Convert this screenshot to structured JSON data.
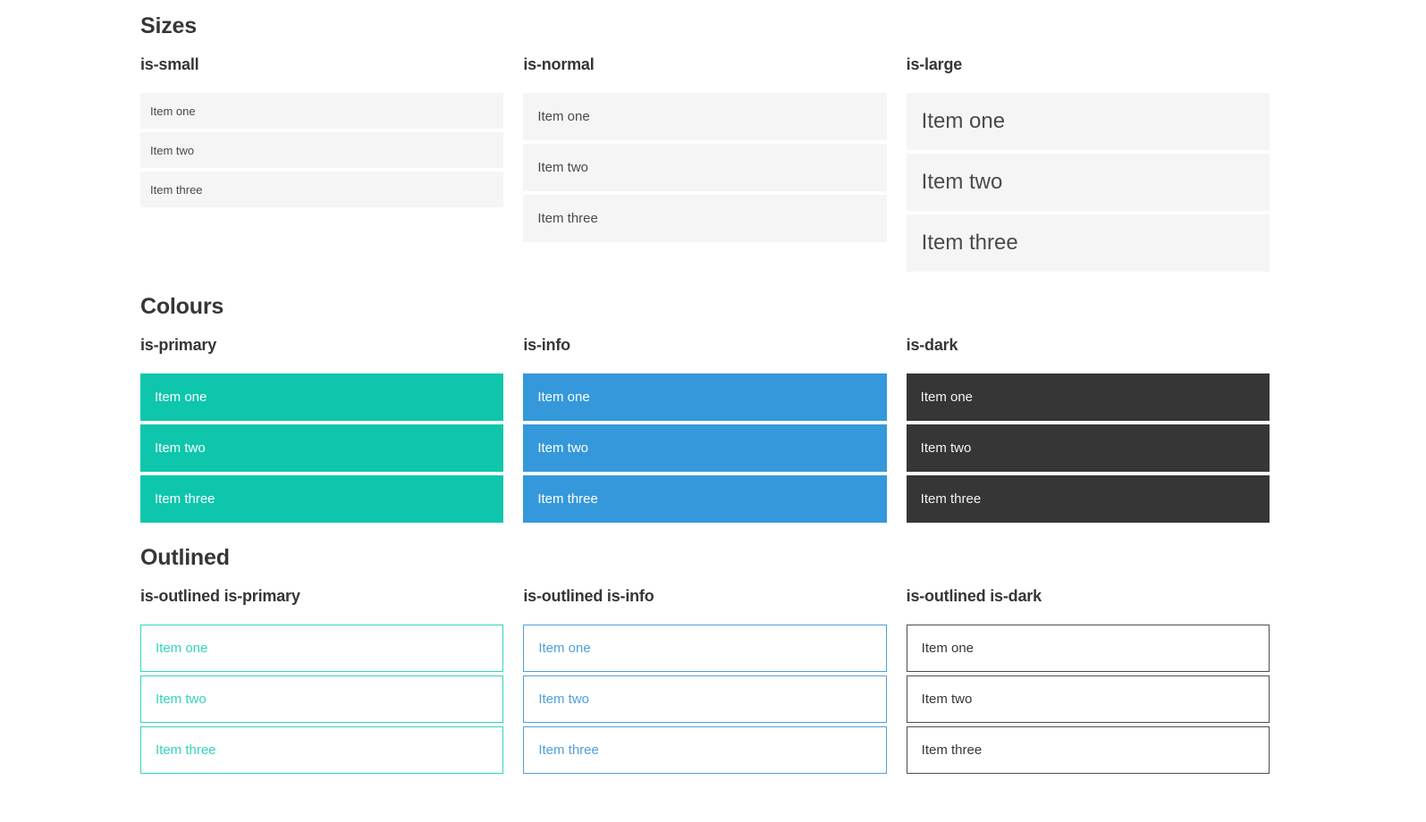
{
  "sections": [
    {
      "title": "Sizes",
      "groups": [
        {
          "label": "is-small",
          "items": [
            "Item one",
            "Item two",
            "Item three"
          ]
        },
        {
          "label": "is-normal",
          "items": [
            "Item one",
            "Item two",
            "Item three"
          ]
        },
        {
          "label": "is-large",
          "items": [
            "Item one",
            "Item two",
            "Item three"
          ]
        }
      ]
    },
    {
      "title": "Colours",
      "groups": [
        {
          "label": "is-primary",
          "items": [
            "Item one",
            "Item two",
            "Item three"
          ]
        },
        {
          "label": "is-info",
          "items": [
            "Item one",
            "Item two",
            "Item three"
          ]
        },
        {
          "label": "is-dark",
          "items": [
            "Item one",
            "Item two",
            "Item three"
          ]
        }
      ]
    },
    {
      "title": "Outlined",
      "groups": [
        {
          "label": "is-outlined is-primary",
          "items": [
            "Item one",
            "Item two",
            "Item three"
          ]
        },
        {
          "label": "is-outlined is-info",
          "items": [
            "Item one",
            "Item two",
            "Item three"
          ]
        },
        {
          "label": "is-outlined is-dark",
          "items": [
            "Item one",
            "Item two",
            "Item three"
          ]
        }
      ]
    }
  ],
  "colors": {
    "primary": "#0dc6ac",
    "primary_outline": "#33d4bd",
    "info": "#3598db",
    "info_outline": "#4f9fdd",
    "dark": "#363636",
    "dark_outline": "#4d4d4d",
    "item_background": "#f5f5f5",
    "item_text": "#4a4a4a",
    "heading_text": "#363636"
  }
}
